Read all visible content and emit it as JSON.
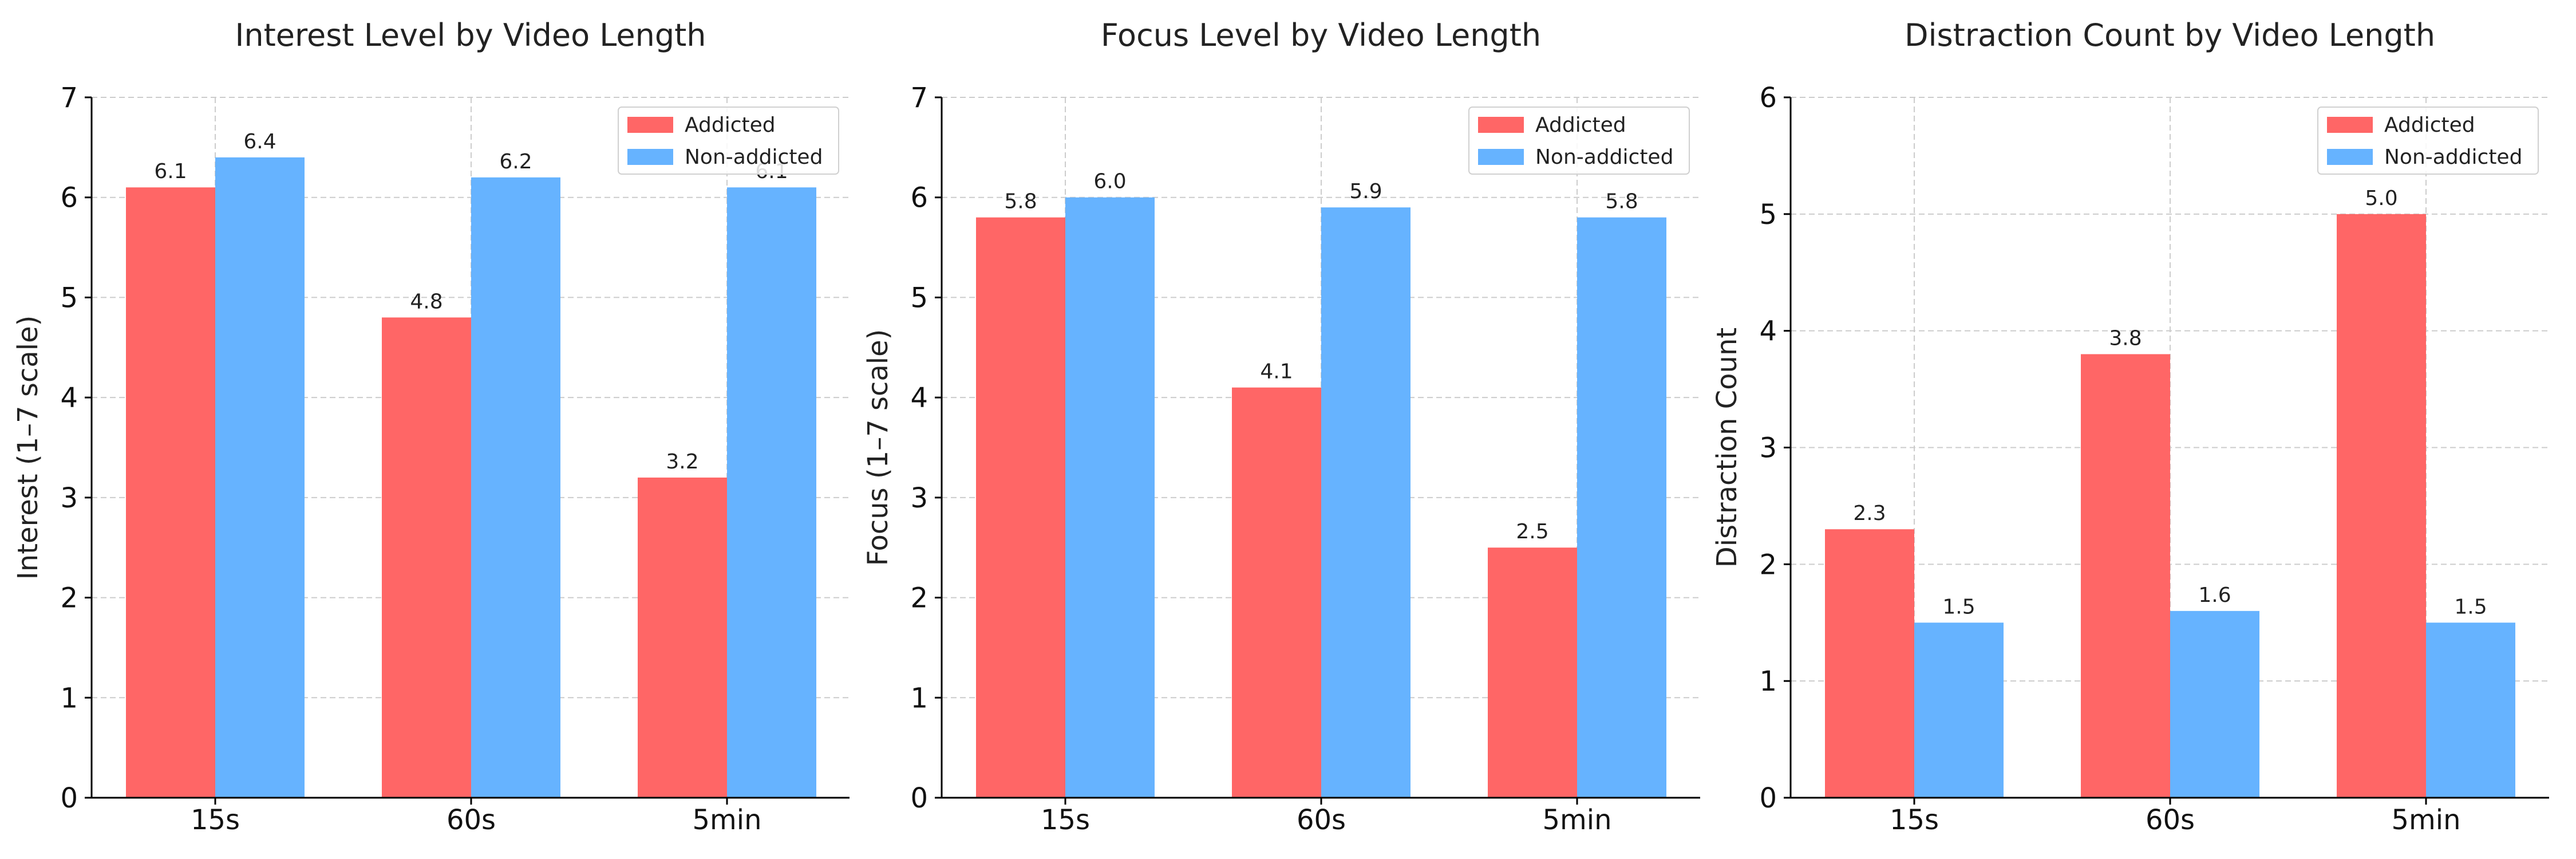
{
  "colors": {
    "addicted": "#ff6666",
    "non_addicted": "#66b3ff",
    "grid": "#cccccc",
    "axis": "#000000"
  },
  "chart_data": [
    {
      "type": "bar",
      "title": "Interest Level by Video Length",
      "xlabel": "",
      "ylabel": "Interest (1–7 scale)",
      "categories": [
        "15s",
        "60s",
        "5min"
      ],
      "ylim": [
        0,
        7
      ],
      "yticks": [
        0,
        1,
        2,
        3,
        4,
        5,
        6,
        7
      ],
      "grid": true,
      "legend": "top-right",
      "series": [
        {
          "name": "Addicted",
          "values": [
            6.1,
            4.8,
            3.2
          ],
          "labels": [
            "6.1",
            "4.8",
            "3.2"
          ]
        },
        {
          "name": "Non-addicted",
          "values": [
            6.4,
            6.2,
            6.1
          ],
          "labels": [
            "6.4",
            "6.2",
            "6.1"
          ]
        }
      ]
    },
    {
      "type": "bar",
      "title": "Focus Level by Video Length",
      "xlabel": "",
      "ylabel": "Focus (1–7 scale)",
      "categories": [
        "15s",
        "60s",
        "5min"
      ],
      "ylim": [
        0,
        7
      ],
      "yticks": [
        0,
        1,
        2,
        3,
        4,
        5,
        6,
        7
      ],
      "grid": true,
      "legend": "top-right",
      "series": [
        {
          "name": "Addicted",
          "values": [
            5.8,
            4.1,
            2.5
          ],
          "labels": [
            "5.8",
            "4.1",
            "2.5"
          ]
        },
        {
          "name": "Non-addicted",
          "values": [
            6.0,
            5.9,
            5.8
          ],
          "labels": [
            "6.0",
            "5.9",
            "5.8"
          ]
        }
      ]
    },
    {
      "type": "bar",
      "title": "Distraction Count by Video Length",
      "xlabel": "",
      "ylabel": "Distraction Count",
      "categories": [
        "15s",
        "60s",
        "5min"
      ],
      "ylim": [
        0,
        6
      ],
      "yticks": [
        0,
        1,
        2,
        3,
        4,
        5,
        6
      ],
      "grid": true,
      "legend": "top-right",
      "series": [
        {
          "name": "Addicted",
          "values": [
            2.3,
            3.8,
            5.0
          ],
          "labels": [
            "2.3",
            "3.8",
            "5.0"
          ]
        },
        {
          "name": "Non-addicted",
          "values": [
            1.5,
            1.6,
            1.5
          ],
          "labels": [
            "1.5",
            "1.6",
            "1.5"
          ]
        }
      ]
    }
  ]
}
